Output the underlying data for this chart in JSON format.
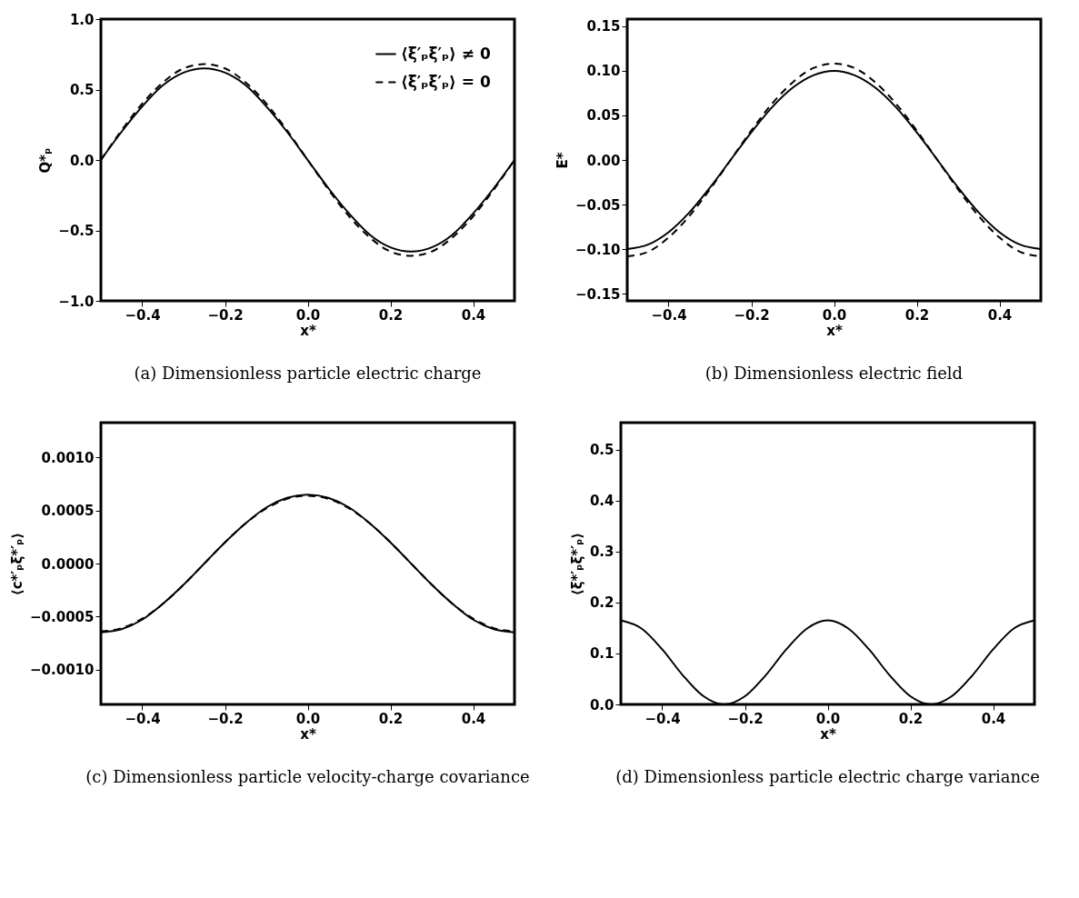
{
  "chart_data": [
    {
      "type": "line",
      "xlabel": "x*",
      "ylabel": "Q*ₚ",
      "annotations": [
        "(a) Dimensionless particle electric charge"
      ],
      "legend": "top right",
      "grid": false,
      "marker": "none",
      "x": [
        -0.5,
        -0.45,
        -0.4,
        -0.35,
        -0.3,
        -0.25,
        -0.2,
        -0.15,
        -0.1,
        -0.05,
        0,
        0.05,
        0.1,
        0.15,
        0.2,
        0.25,
        0.3,
        0.35,
        0.4,
        0.45,
        0.5
      ],
      "xlim": [
        -0.5,
        0.5
      ],
      "xticks": [
        {
          "value": -0.4,
          "label": "−0.4"
        },
        {
          "value": -0.2,
          "label": "−0.2"
        },
        {
          "value": 0,
          "label": "0.0"
        },
        {
          "value": 0.2,
          "label": "0.2"
        },
        {
          "value": 0.4,
          "label": "0.4"
        }
      ],
      "ylim": [
        -1,
        1
      ],
      "yticks": [
        {
          "value": -1,
          "label": "−1.0"
        },
        {
          "value": -0.5,
          "label": "−0.5"
        },
        {
          "value": 0,
          "label": "0.0"
        },
        {
          "value": 0.5,
          "label": "0.5"
        },
        {
          "value": 1,
          "label": "1.0"
        }
      ],
      "series": [
        {
          "name": "⟨ξ′ₚξ′ₚ⟩ ≠ 0",
          "color": "#000000",
          "line_style": "solid",
          "values": [
            0,
            0.2,
            0.38,
            0.53,
            0.62,
            0.65,
            0.62,
            0.53,
            0.38,
            0.2,
            0,
            -0.2,
            -0.38,
            -0.53,
            -0.62,
            -0.65,
            -0.62,
            -0.53,
            -0.38,
            -0.2,
            0
          ]
        },
        {
          "name": "⟨ξ′ₚξ′ₚ⟩ = 0",
          "color": "#000000",
          "line_style": "dashed",
          "values": [
            0,
            0.21,
            0.4,
            0.55,
            0.65,
            0.68,
            0.65,
            0.55,
            0.4,
            0.21,
            0,
            -0.21,
            -0.4,
            -0.55,
            -0.65,
            -0.68,
            -0.65,
            -0.55,
            -0.4,
            -0.21,
            0
          ]
        }
      ]
    },
    {
      "type": "line",
      "xlabel": "x*",
      "ylabel": "E*",
      "annotations": [
        "(b) Dimensionless electric field"
      ],
      "grid": false,
      "marker": "none",
      "x": [
        -0.5,
        -0.45,
        -0.4,
        -0.35,
        -0.3,
        -0.25,
        -0.2,
        -0.15,
        -0.1,
        -0.05,
        0,
        0.05,
        0.1,
        0.15,
        0.2,
        0.25,
        0.3,
        0.35,
        0.4,
        0.45,
        0.5
      ],
      "xlim": [
        -0.5,
        0.5
      ],
      "xticks": [
        {
          "value": -0.4,
          "label": "−0.4"
        },
        {
          "value": -0.2,
          "label": "−0.2"
        },
        {
          "value": 0,
          "label": "0.0"
        },
        {
          "value": 0.2,
          "label": "0.2"
        },
        {
          "value": 0.4,
          "label": "0.4"
        }
      ],
      "ylim": [
        -0.158,
        0.158
      ],
      "yticks": [
        {
          "value": -0.15,
          "label": "−0.15"
        },
        {
          "value": -0.1,
          "label": "−0.10"
        },
        {
          "value": -0.05,
          "label": "−0.05"
        },
        {
          "value": 0,
          "label": "0.00"
        },
        {
          "value": 0.05,
          "label": "0.05"
        },
        {
          "value": 0.1,
          "label": "0.10"
        },
        {
          "value": 0.15,
          "label": "0.15"
        }
      ],
      "series": [
        {
          "color": "#000000",
          "line_style": "solid",
          "values": [
            -0.1,
            -0.095,
            -0.081,
            -0.059,
            -0.031,
            0,
            0.031,
            0.059,
            0.081,
            0.095,
            0.1,
            0.095,
            0.081,
            0.059,
            0.031,
            0,
            -0.031,
            -0.059,
            -0.081,
            -0.095,
            -0.1
          ]
        },
        {
          "color": "#000000",
          "line_style": "dashed",
          "values": [
            -0.108,
            -0.103,
            -0.087,
            -0.063,
            -0.033,
            0,
            0.033,
            0.063,
            0.087,
            0.103,
            0.108,
            0.103,
            0.087,
            0.063,
            0.033,
            0,
            -0.033,
            -0.063,
            -0.087,
            -0.103,
            -0.108
          ]
        }
      ]
    },
    {
      "type": "line",
      "xlabel": "x*",
      "ylabel": "⟨c*′ₚξ*′ₚ⟩",
      "annotations": [
        "(c) Dimensionless particle velocity-charge covariance"
      ],
      "grid": false,
      "marker": "none",
      "x": [
        -0.5,
        -0.45,
        -0.4,
        -0.35,
        -0.3,
        -0.25,
        -0.2,
        -0.15,
        -0.1,
        -0.05,
        0,
        0.05,
        0.1,
        0.15,
        0.2,
        0.25,
        0.3,
        0.35,
        0.4,
        0.45,
        0.5
      ],
      "xlim": [
        -0.5,
        0.5
      ],
      "xticks": [
        {
          "value": -0.4,
          "label": "−0.4"
        },
        {
          "value": -0.2,
          "label": "−0.2"
        },
        {
          "value": 0,
          "label": "0.0"
        },
        {
          "value": 0.2,
          "label": "0.2"
        },
        {
          "value": 0.4,
          "label": "0.4"
        }
      ],
      "ylim": [
        -0.00133,
        0.00133
      ],
      "yticks": [
        {
          "value": -0.001,
          "label": "−0.0010"
        },
        {
          "value": -0.0005,
          "label": "−0.0005"
        },
        {
          "value": 0,
          "label": "0.0000"
        },
        {
          "value": 0.0005,
          "label": "0.0005"
        },
        {
          "value": 0.001,
          "label": "0.0010"
        }
      ],
      "series": [
        {
          "color": "#000000",
          "line_style": "solid",
          "values": [
            -0.00065,
            -0.00062,
            -0.00053,
            -0.00038,
            -0.0002,
            0,
            0.0002,
            0.00038,
            0.00053,
            0.00062,
            0.00065,
            0.00062,
            0.00053,
            0.00038,
            0.0002,
            0,
            -0.0002,
            -0.00038,
            -0.00053,
            -0.00062,
            -0.00065
          ]
        },
        {
          "color": "#000000",
          "line_style": "dashed",
          "values": [
            -0.00064,
            -0.00061,
            -0.00052,
            -0.00038,
            -0.0002,
            0,
            0.0002,
            0.00038,
            0.00052,
            0.00061,
            0.00064,
            0.00061,
            0.00052,
            0.00038,
            0.0002,
            0,
            -0.0002,
            -0.00038,
            -0.00052,
            -0.00061,
            -0.00064
          ]
        }
      ]
    },
    {
      "type": "line",
      "xlabel": "x*",
      "ylabel": "⟨ξ*′ₚξ*′ₚ⟩",
      "annotations": [
        "(d) Dimensionless particle electric charge variance"
      ],
      "grid": false,
      "marker": "none",
      "x": [
        -0.5,
        -0.45,
        -0.4,
        -0.35,
        -0.3,
        -0.25,
        -0.2,
        -0.15,
        -0.1,
        -0.05,
        0,
        0.05,
        0.1,
        0.15,
        0.2,
        0.25,
        0.3,
        0.35,
        0.4,
        0.45,
        0.5
      ],
      "xlim": [
        -0.5,
        0.5
      ],
      "xticks": [
        {
          "value": -0.4,
          "label": "−0.4"
        },
        {
          "value": -0.2,
          "label": "−0.2"
        },
        {
          "value": 0,
          "label": "0.0"
        },
        {
          "value": 0.2,
          "label": "0.2"
        },
        {
          "value": 0.4,
          "label": "0.4"
        }
      ],
      "ylim": [
        0,
        0.553
      ],
      "yticks": [
        {
          "value": 0,
          "label": "0.0"
        },
        {
          "value": 0.1,
          "label": "0.1"
        },
        {
          "value": 0.2,
          "label": "0.2"
        },
        {
          "value": 0.3,
          "label": "0.3"
        },
        {
          "value": 0.4,
          "label": "0.4"
        },
        {
          "value": 0.5,
          "label": "0.5"
        }
      ],
      "series": [
        {
          "color": "#000000",
          "line_style": "solid",
          "values": [
            0.165,
            0.149,
            0.108,
            0.057,
            0.016,
            0,
            0.016,
            0.057,
            0.108,
            0.149,
            0.165,
            0.149,
            0.108,
            0.057,
            0.016,
            0,
            0.016,
            0.057,
            0.108,
            0.149,
            0.165
          ]
        }
      ]
    }
  ]
}
